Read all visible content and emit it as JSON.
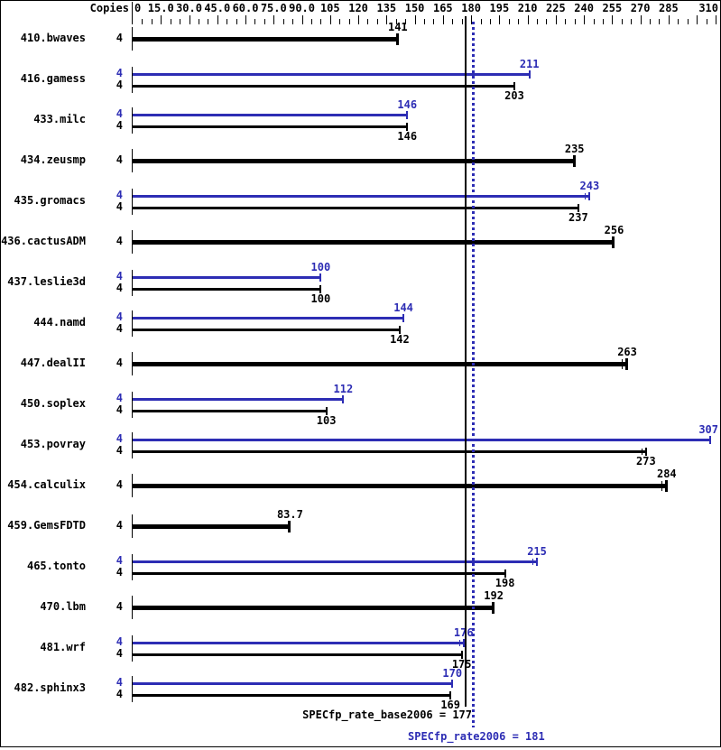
{
  "chart_data": {
    "type": "bar",
    "orientation": "horizontal",
    "copies_header": "Copies",
    "xlim": [
      0,
      310
    ],
    "minor_tick_step": 5,
    "major_tick_step": 15,
    "x_axis_major_labels": [
      {
        "value": 0,
        "label": "0"
      },
      {
        "value": 15,
        "label": "15.0"
      },
      {
        "value": 30,
        "label": "30.0"
      },
      {
        "value": 45,
        "label": "45.0"
      },
      {
        "value": 60,
        "label": "60.0"
      },
      {
        "value": 75,
        "label": "75.0"
      },
      {
        "value": 90,
        "label": "90.0"
      },
      {
        "value": 105,
        "label": "105"
      },
      {
        "value": 120,
        "label": "120"
      },
      {
        "value": 135,
        "label": "135"
      },
      {
        "value": 150,
        "label": "150"
      },
      {
        "value": 165,
        "label": "165"
      },
      {
        "value": 180,
        "label": "180"
      },
      {
        "value": 195,
        "label": "195"
      },
      {
        "value": 210,
        "label": "210"
      },
      {
        "value": 225,
        "label": "225"
      },
      {
        "value": 240,
        "label": "240"
      },
      {
        "value": 255,
        "label": "255"
      },
      {
        "value": 270,
        "label": "270"
      },
      {
        "value": 285,
        "label": "285"
      },
      {
        "value": 310,
        "label": "310"
      }
    ],
    "categories": [
      "410.bwaves",
      "416.gamess",
      "433.milc",
      "434.zeusmp",
      "435.gromacs",
      "436.cactusADM",
      "437.leslie3d",
      "444.namd",
      "447.dealII",
      "450.soplex",
      "453.povray",
      "454.calculix",
      "459.GemsFDTD",
      "465.tonto",
      "470.lbm",
      "481.wrf",
      "482.sphinx3"
    ],
    "series": [
      {
        "name": "SPECfp_rate2006 (peak)",
        "color_key": "peak",
        "values": [
          null,
          211,
          146,
          null,
          243,
          null,
          100,
          144,
          null,
          112,
          307,
          null,
          null,
          215,
          null,
          176,
          170
        ]
      },
      {
        "name": "SPECfp_rate_base2006 (base)",
        "color_key": "base",
        "values": [
          141,
          203,
          146,
          235,
          237,
          256,
          100,
          142,
          263,
          103,
          273,
          284,
          83.7,
          198,
          192,
          175,
          169
        ]
      }
    ]
  },
  "benchmarks": [
    {
      "name": "410.bwaves",
      "single": true,
      "copies": "4",
      "base": {
        "value": 141,
        "label": "141",
        "cap2": false
      }
    },
    {
      "name": "416.gamess",
      "single": false,
      "copies": "4",
      "peak": {
        "value": 211,
        "label": "211",
        "cap2": false
      },
      "base": {
        "value": 203,
        "label": "203",
        "cap2": false
      }
    },
    {
      "name": "433.milc",
      "single": false,
      "copies": "4",
      "peak": {
        "value": 146,
        "label": "146",
        "cap2": false
      },
      "base": {
        "value": 146,
        "label": "146",
        "cap2": false
      }
    },
    {
      "name": "434.zeusmp",
      "single": true,
      "copies": "4",
      "base": {
        "value": 235,
        "label": "235",
        "cap2": false
      }
    },
    {
      "name": "435.gromacs",
      "single": false,
      "copies": "4",
      "peak": {
        "value": 243,
        "label": "243",
        "cap2": true
      },
      "base": {
        "value": 237,
        "label": "237",
        "cap2": false
      }
    },
    {
      "name": "436.cactusADM",
      "single": true,
      "copies": "4",
      "base": {
        "value": 256,
        "label": "256",
        "cap2": false
      }
    },
    {
      "name": "437.leslie3d",
      "single": false,
      "copies": "4",
      "peak": {
        "value": 100,
        "label": "100",
        "cap2": false
      },
      "base": {
        "value": 100,
        "label": "100",
        "cap2": false
      }
    },
    {
      "name": "444.namd",
      "single": false,
      "copies": "4",
      "peak": {
        "value": 144,
        "label": "144",
        "cap2": false
      },
      "base": {
        "value": 142,
        "label": "142",
        "cap2": false
      }
    },
    {
      "name": "447.dealII",
      "single": true,
      "copies": "4",
      "base": {
        "value": 263,
        "label": "263",
        "cap2": true
      }
    },
    {
      "name": "450.soplex",
      "single": false,
      "copies": "4",
      "peak": {
        "value": 112,
        "label": "112",
        "cap2": false
      },
      "base": {
        "value": 103,
        "label": "103",
        "cap2": false
      }
    },
    {
      "name": "453.povray",
      "single": false,
      "copies": "4",
      "peak": {
        "value": 307,
        "label": "307",
        "cap2": false
      },
      "base": {
        "value": 273,
        "label": "273",
        "cap2": true
      }
    },
    {
      "name": "454.calculix",
      "single": true,
      "copies": "4",
      "base": {
        "value": 284,
        "label": "284",
        "cap2": true
      }
    },
    {
      "name": "459.GemsFDTD",
      "single": true,
      "copies": "4",
      "base": {
        "value": 83.7,
        "label": "83.7",
        "cap2": false
      }
    },
    {
      "name": "465.tonto",
      "single": false,
      "copies": "4",
      "peak": {
        "value": 215,
        "label": "215",
        "cap2": true
      },
      "base": {
        "value": 198,
        "label": "198",
        "cap2": false
      }
    },
    {
      "name": "470.lbm",
      "single": true,
      "copies": "4",
      "base": {
        "value": 192,
        "label": "192",
        "cap2": false
      }
    },
    {
      "name": "481.wrf",
      "single": false,
      "copies": "4",
      "peak": {
        "value": 176,
        "label": "176",
        "cap2": true
      },
      "base": {
        "value": 175,
        "label": "175",
        "cap2": false
      }
    },
    {
      "name": "482.sphinx3",
      "single": false,
      "copies": "4",
      "peak": {
        "value": 170,
        "label": "170",
        "cap2": false
      },
      "base": {
        "value": 169,
        "label": "169",
        "cap2": false
      }
    }
  ],
  "summary": {
    "base_text": "SPECfp_rate_base2006 = 177",
    "base_value": 177,
    "peak_text": "SPECfp_rate2006 = 181",
    "peak_value": 181
  },
  "colors": {
    "base": "#000000",
    "peak": "#2d2db4",
    "background": "#ffffff"
  }
}
